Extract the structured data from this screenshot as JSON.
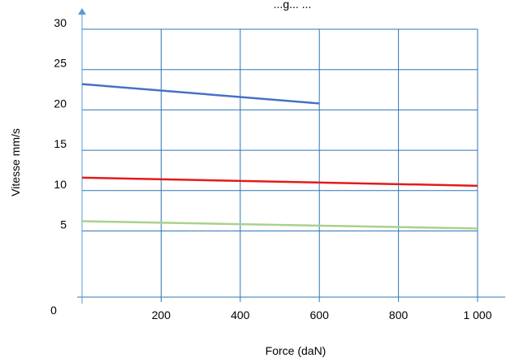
{
  "chart_data": {
    "type": "line",
    "title": "...g... ...",
    "xlabel": "Force (daN)",
    "ylabel": "Vitesse mm/s",
    "xlim": [
      0,
      1000
    ],
    "ylim": [
      -3,
      30
    ],
    "x_ticks": [
      200,
      400,
      600,
      800,
      1000
    ],
    "x_tick_labels": [
      "200",
      "400",
      "600",
      "800",
      "1 000"
    ],
    "y_ticks": [
      5,
      10,
      15,
      20,
      25,
      30
    ],
    "y_tick_labels": [
      "5",
      "10",
      "15",
      "20",
      "25",
      "30"
    ],
    "origin_label": "0",
    "grid": true,
    "legend": "none",
    "series": [
      {
        "color": "#4472C4",
        "x": [
          0,
          600
        ],
        "y": [
          23.2,
          20.8
        ]
      },
      {
        "color": "#E31A1C",
        "x": [
          0,
          1000
        ],
        "y": [
          11.6,
          10.6
        ]
      },
      {
        "color": "#A9D18E",
        "x": [
          0,
          1000
        ],
        "y": [
          6.2,
          5.3
        ]
      }
    ],
    "colors": {
      "grid": "#2E75B6",
      "axis_arrow": "#5B9BD5"
    }
  }
}
